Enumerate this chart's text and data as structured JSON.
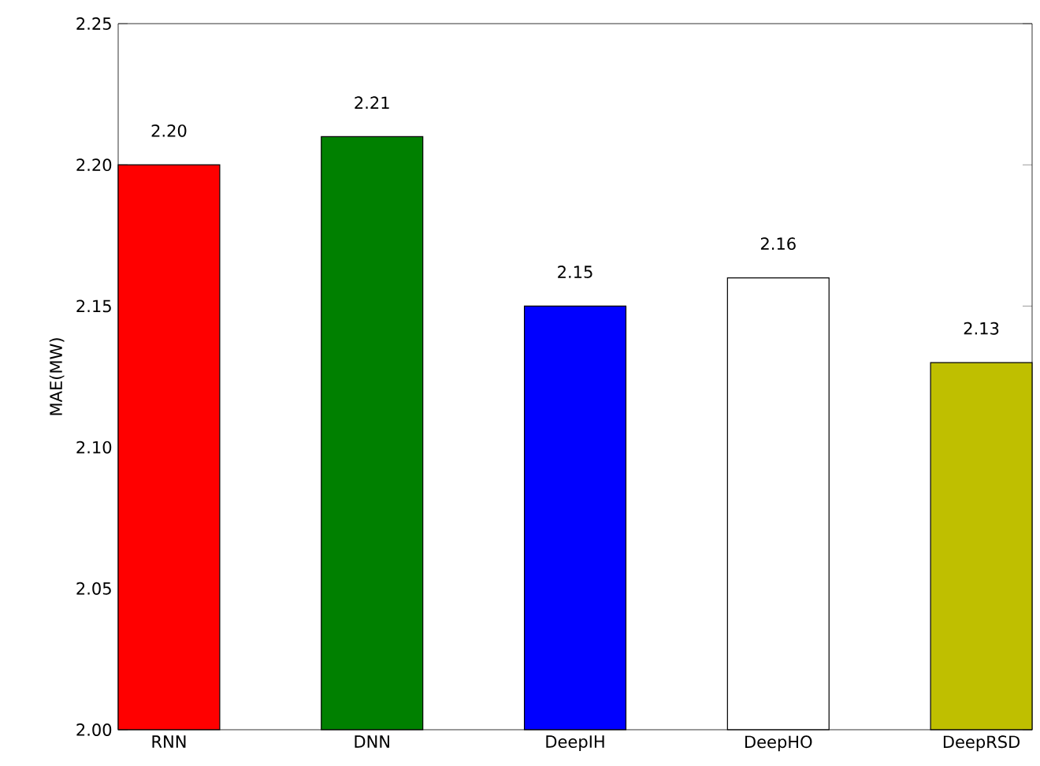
{
  "chart_data": {
    "type": "bar",
    "ylabel": "MAE(MW)",
    "categories": [
      "RNN",
      "DNN",
      "DeepIH",
      "DeepHO",
      "DeepRSD"
    ],
    "values": [
      2.2,
      2.21,
      2.15,
      2.16,
      2.13
    ],
    "colors": [
      "#ff0000",
      "#008000",
      "#0000ff",
      "#ffffff",
      "#bfbf00"
    ],
    "value_labels": [
      "2.20",
      "2.21",
      "2.15",
      "2.16",
      "2.13"
    ],
    "ylim": [
      2.0,
      2.25
    ],
    "yticks": [
      {
        "value": 2.0,
        "label": "2.00"
      },
      {
        "value": 2.05,
        "label": "2.05"
      },
      {
        "value": 2.1,
        "label": "2.10"
      },
      {
        "value": 2.15,
        "label": "2.15"
      },
      {
        "value": 2.2,
        "label": "2.20"
      },
      {
        "value": 2.25,
        "label": "2.25"
      }
    ],
    "grid": false
  }
}
